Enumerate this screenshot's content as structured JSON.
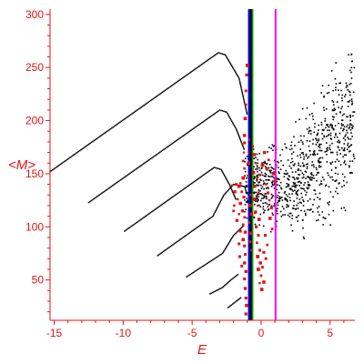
{
  "chart_data": {
    "type": "scatter",
    "title": "",
    "xlabel": "E",
    "ylabel": "<M>",
    "xlim": [
      -15.3,
      6.8
    ],
    "ylim": [
      12,
      305
    ],
    "grid": false,
    "x_ticks": [
      -15,
      -10,
      -5,
      0,
      5
    ],
    "y_ticks": [
      50,
      100,
      150,
      200,
      250,
      300
    ],
    "colors": {
      "axes": "#e11414",
      "bands": "#000000",
      "red_points": "#e11414",
      "cloud": "#000000",
      "line_green": "#00a000",
      "line_blue": "#0000ff",
      "line_black": "#000000",
      "line_magenta": "#ff00ff"
    },
    "vertical_lines": [
      {
        "name": "blue",
        "x": -0.85,
        "color": "#0000ff",
        "width": 3
      },
      {
        "name": "green",
        "x": -0.66,
        "color": "#00a000",
        "width": 3
      },
      {
        "name": "black",
        "x": -0.74,
        "color": "#000000",
        "width": 2
      },
      {
        "name": "magenta",
        "x": 1.05,
        "color": "#ff00ff",
        "width": 2
      }
    ],
    "bands": [
      {
        "ridge": [
          [
            -15.3,
            152
          ],
          [
            -3.1,
            264
          ],
          [
            -2.6,
            262
          ],
          [
            -1.6,
            240
          ],
          [
            -1.0,
            205
          ]
        ]
      },
      {
        "ridge": [
          [
            -12.5,
            123
          ],
          [
            -3.0,
            210
          ],
          [
            -2.5,
            208
          ],
          [
            -1.8,
            192
          ],
          [
            -1.2,
            172
          ]
        ]
      },
      {
        "ridge": [
          [
            -9.9,
            96
          ],
          [
            -3.4,
            156
          ],
          [
            -2.9,
            154
          ],
          [
            -2.3,
            140
          ],
          [
            -1.8,
            125
          ]
        ]
      },
      {
        "ridge": [
          [
            -7.5,
            73
          ],
          [
            -3.5,
            110
          ],
          [
            -2.7,
            130
          ],
          [
            -2.0,
            140
          ],
          [
            -1.2,
            138
          ],
          [
            -1.0,
            130
          ]
        ]
      },
      {
        "ridge": [
          [
            -5.4,
            53
          ],
          [
            -2.8,
            75
          ],
          [
            -2.0,
            92
          ],
          [
            -1.2,
            102
          ]
        ]
      },
      {
        "ridge": [
          [
            -3.7,
            37
          ],
          [
            -2.8,
            43
          ],
          [
            -2.2,
            50
          ],
          [
            -1.6,
            56
          ]
        ]
      },
      {
        "ridge": [
          [
            -2.4,
            24
          ],
          [
            -1.8,
            30
          ],
          [
            -1.4,
            34
          ]
        ]
      }
    ],
    "red_points": [
      [
        -1.0,
        252
      ],
      [
        -1.05,
        243
      ],
      [
        -1.1,
        228
      ],
      [
        -1.1,
        215
      ],
      [
        -1.15,
        202
      ],
      [
        -1.2,
        186
      ],
      [
        -1.2,
        179
      ],
      [
        -1.25,
        170
      ],
      [
        -1.3,
        162
      ],
      [
        -1.2,
        155
      ],
      [
        -1.3,
        146
      ],
      [
        -1.5,
        141
      ],
      [
        -1.6,
        138
      ],
      [
        -1.4,
        133
      ],
      [
        -1.25,
        128
      ],
      [
        -1.5,
        122
      ],
      [
        -1.35,
        115
      ],
      [
        -1.2,
        109
      ],
      [
        -1.3,
        102
      ],
      [
        -1.15,
        95
      ],
      [
        -1.3,
        88
      ],
      [
        -1.2,
        82
      ],
      [
        -1.15,
        74
      ],
      [
        -1.2,
        66
      ],
      [
        -1.1,
        58
      ],
      [
        -1.2,
        51
      ],
      [
        -1.15,
        42
      ],
      [
        -1.1,
        33
      ],
      [
        -1.05,
        26
      ],
      [
        -1.1,
        18
      ],
      [
        -1.8,
        140
      ],
      [
        -1.9,
        133
      ],
      [
        -1.7,
        126
      ],
      [
        -1.95,
        120
      ],
      [
        -1.6,
        112
      ],
      [
        -1.75,
        106
      ],
      [
        -2.1,
        139
      ],
      [
        -2.0,
        115
      ],
      [
        -1.5,
        96
      ],
      [
        -1.6,
        84
      ],
      [
        -1.55,
        72
      ],
      [
        -1.4,
        63
      ],
      [
        -0.6,
        176
      ],
      [
        -0.5,
        168
      ],
      [
        -0.4,
        160
      ],
      [
        -0.55,
        151
      ],
      [
        -0.3,
        145
      ],
      [
        -0.45,
        138
      ],
      [
        -0.2,
        132
      ],
      [
        -0.5,
        126
      ],
      [
        -0.25,
        120
      ],
      [
        -0.4,
        114
      ],
      [
        -0.15,
        107
      ],
      [
        -0.35,
        100
      ],
      [
        -0.2,
        92
      ],
      [
        -0.3,
        85
      ],
      [
        -0.1,
        78
      ],
      [
        -0.25,
        72
      ],
      [
        -0.05,
        66
      ],
      [
        -0.2,
        60
      ],
      [
        0.0,
        54
      ],
      [
        -0.1,
        47
      ],
      [
        0.05,
        41
      ],
      [
        0.2,
        48
      ],
      [
        0.35,
        140
      ],
      [
        0.5,
        132
      ],
      [
        0.6,
        125
      ],
      [
        0.75,
        118
      ],
      [
        0.9,
        150
      ],
      [
        1.0,
        143
      ],
      [
        0.65,
        108
      ],
      [
        0.8,
        98
      ],
      [
        0.4,
        155
      ],
      [
        0.55,
        163
      ],
      [
        0.25,
        170
      ],
      [
        0.1,
        158
      ],
      [
        -0.05,
        149
      ],
      [
        0.3,
        92
      ],
      [
        0.45,
        83
      ],
      [
        0.2,
        76
      ],
      [
        0.1,
        62
      ],
      [
        0.35,
        70
      ],
      [
        -0.75,
        130
      ],
      [
        -0.8,
        120
      ],
      [
        -0.7,
        112
      ],
      [
        -0.85,
        104
      ],
      [
        -0.75,
        94
      ],
      [
        -0.8,
        86
      ],
      [
        -0.7,
        78
      ],
      [
        -0.9,
        160
      ],
      [
        -0.9,
        170
      ],
      [
        -0.85,
        182
      ],
      [
        -0.95,
        148
      ]
    ],
    "cloud_region": {
      "x_range": [
        -1.2,
        6.8
      ],
      "lower_bound": [
        [
          -1.2,
          95
        ],
        [
          0,
          88
        ],
        [
          2,
          80
        ],
        [
          4,
          78
        ],
        [
          6.8,
          95
        ]
      ],
      "upper_bound": [
        [
          -1.2,
          185
        ],
        [
          0,
          185
        ],
        [
          2,
          195
        ],
        [
          4,
          245
        ],
        [
          6.8,
          305
        ]
      ],
      "count": 900
    }
  }
}
